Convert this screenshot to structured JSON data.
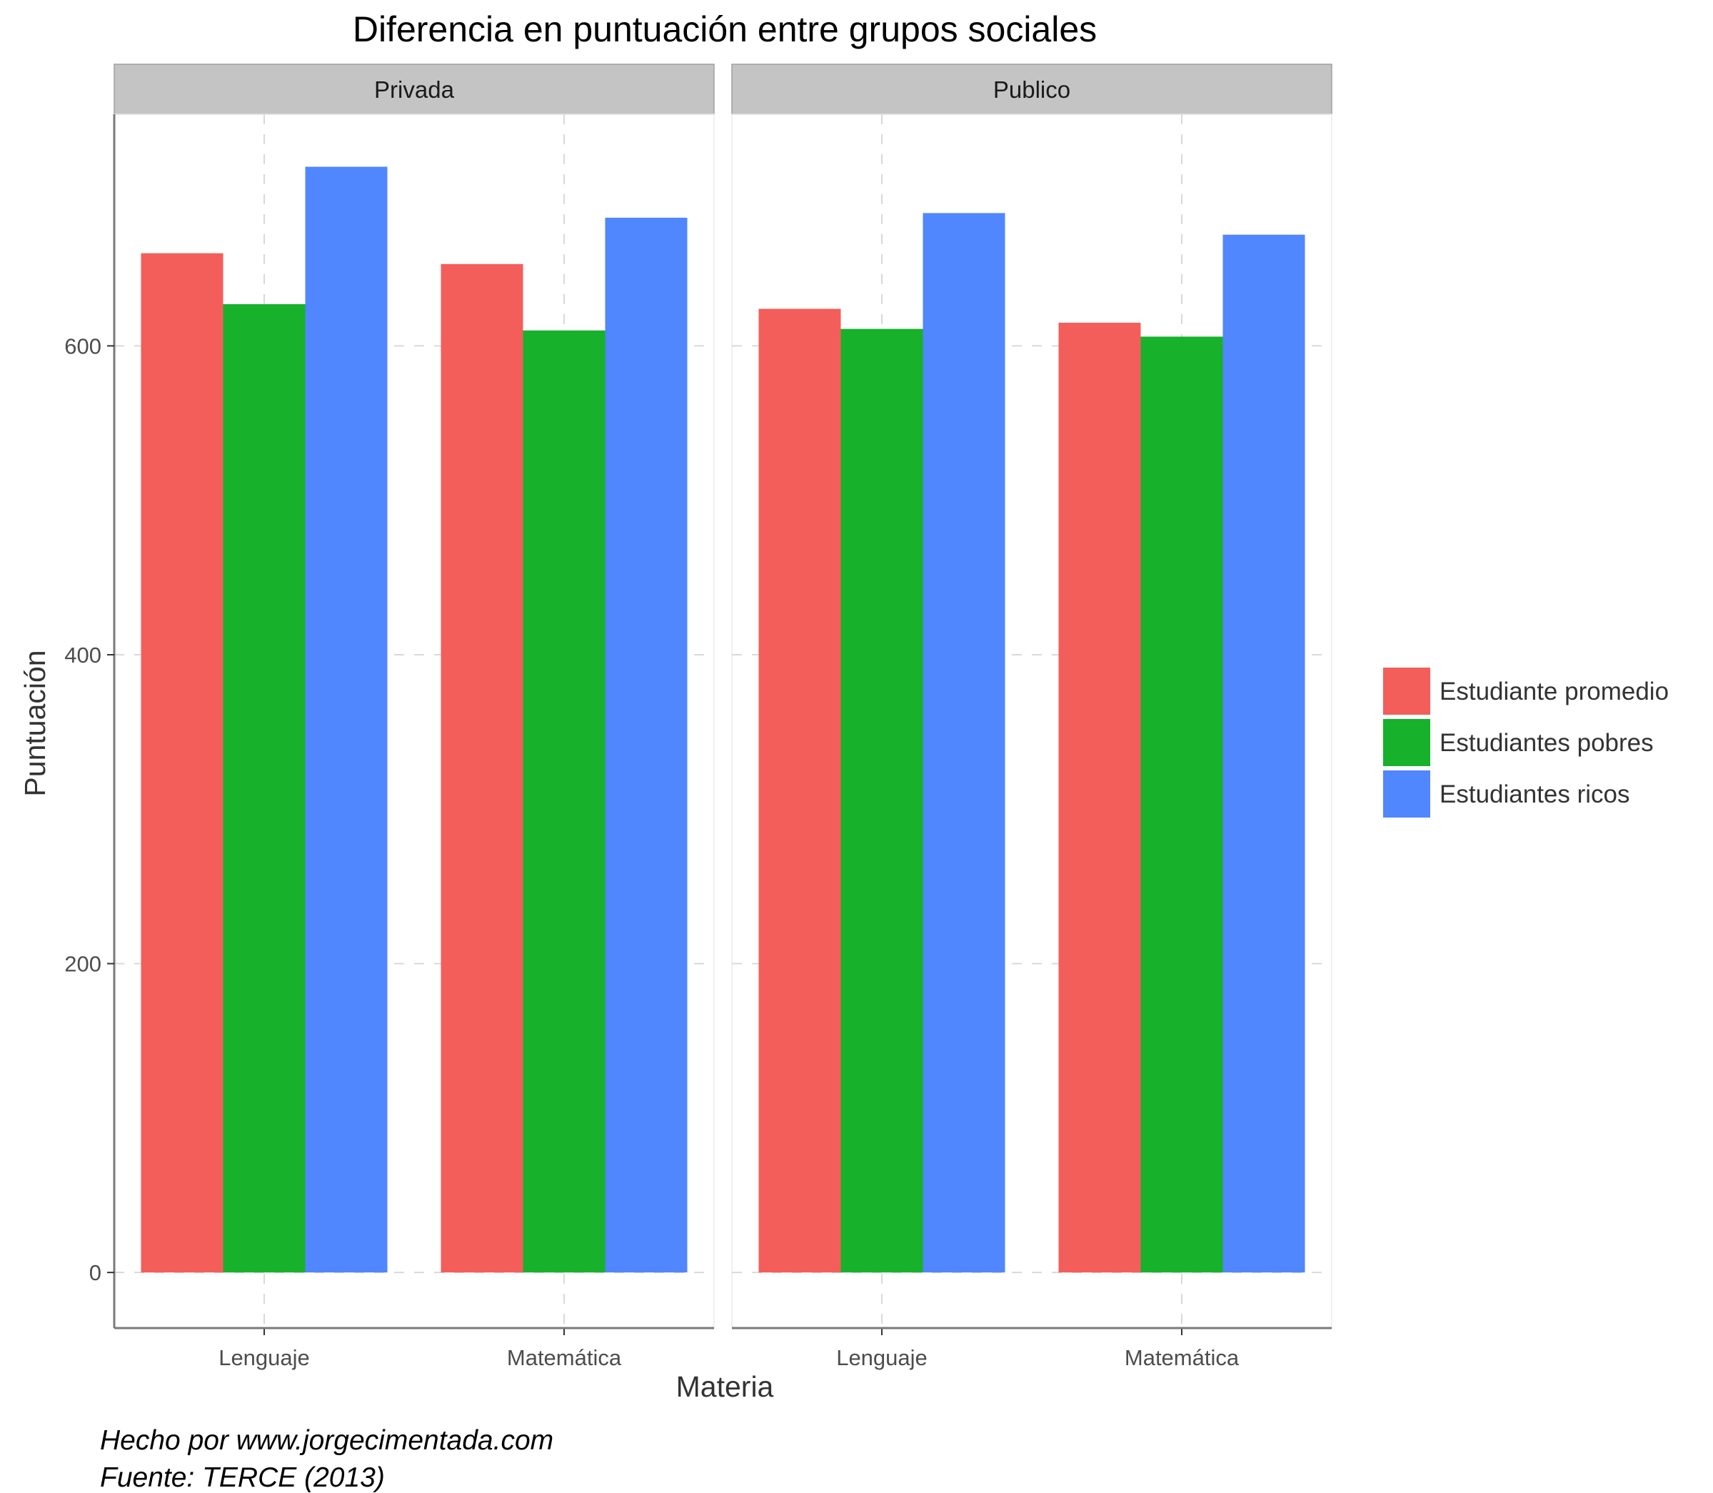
{
  "chart_data": {
    "type": "bar",
    "title": "Diferencia en puntuación entre grupos sociales",
    "xlabel": "Materia",
    "ylabel": "Puntuación",
    "ylim": [
      -36,
      750
    ],
    "yticks": [
      0,
      200,
      400,
      600
    ],
    "grid": true,
    "legend_position": "right",
    "categories": [
      "Lenguaje",
      "Matemática"
    ],
    "facets": [
      {
        "name": "Privada",
        "series": [
          {
            "name": "Estudiante promedio",
            "values": [
              660,
              653
            ]
          },
          {
            "name": "Estudiantes pobres",
            "values": [
              627,
              610
            ]
          },
          {
            "name": "Estudiantes ricos",
            "values": [
              716,
              683
            ]
          }
        ]
      },
      {
        "name": "Publico",
        "series": [
          {
            "name": "Estudiante promedio",
            "values": [
              624,
              615
            ]
          },
          {
            "name": "Estudiantes pobres",
            "values": [
              611,
              606
            ]
          },
          {
            "name": "Estudiantes ricos",
            "values": [
              686,
              672
            ]
          }
        ]
      }
    ],
    "colors": {
      "Estudiante promedio": "#f35e5a",
      "Estudiantes pobres": "#17b12b",
      "Estudiantes ricos": "#5086fe"
    },
    "strip_fill": "#c4c4c4",
    "grid_color": "#d9d9d9"
  },
  "caption": {
    "line1": "Hecho por www.jorgecimentada.com",
    "line2": "Fuente: TERCE (2013)"
  }
}
